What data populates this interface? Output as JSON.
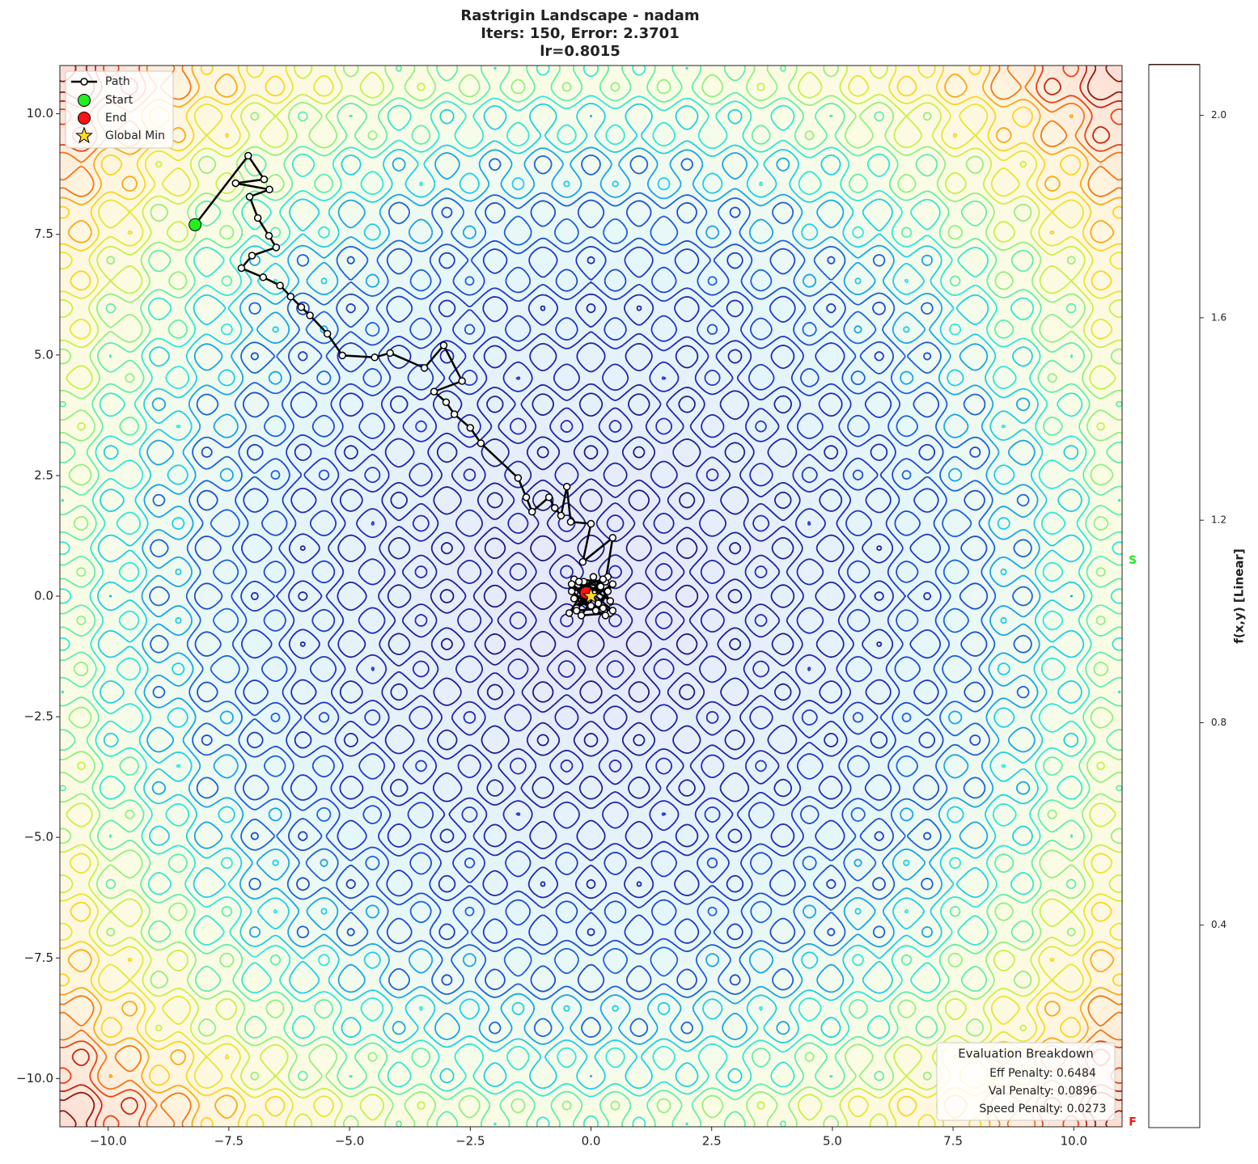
{
  "chart_data": {
    "type": "contour",
    "title": "Rastrigin Landscape - nadam",
    "subtitle": "Iters: 150, Error: 2.3701",
    "subtitle2": "lr=0.8015",
    "xlim": [
      -11,
      11
    ],
    "ylim": [
      -11,
      11
    ],
    "xticks": [
      {
        "value": -10,
        "label": "−10.0"
      },
      {
        "value": -7.5,
        "label": "−7.5"
      },
      {
        "value": -5,
        "label": "−5.0"
      },
      {
        "value": -2.5,
        "label": "−2.5"
      },
      {
        "value": 0,
        "label": "0.0"
      },
      {
        "value": 2.5,
        "label": "2.5"
      },
      {
        "value": 5,
        "label": "5.0"
      },
      {
        "value": 7.5,
        "label": "7.5"
      },
      {
        "value": 10,
        "label": "10.0"
      }
    ],
    "yticks": [
      {
        "value": -10,
        "label": "−10.0"
      },
      {
        "value": -7.5,
        "label": "−7.5"
      },
      {
        "value": -5,
        "label": "−5.0"
      },
      {
        "value": -2.5,
        "label": "−2.5"
      },
      {
        "value": 0,
        "label": "0.0"
      },
      {
        "value": 2.5,
        "label": "2.5"
      },
      {
        "value": 5,
        "label": "5.0"
      },
      {
        "value": 7.5,
        "label": "7.5"
      },
      {
        "value": 10,
        "label": "10.0"
      }
    ],
    "path": {
      "name": "Path",
      "color": "#000000",
      "x": [
        -8.2,
        -7.1,
        -6.77,
        -7.36,
        -6.66,
        -7.07,
        -6.9,
        -6.67,
        -6.52,
        -7.02,
        -7.24,
        -6.79,
        -6.44,
        -6.22,
        -6.0,
        -5.82,
        -5.46,
        -5.15,
        -4.48,
        -4.16,
        -3.45,
        -3.05,
        -2.67,
        -3.25,
        -3.0,
        -2.83,
        -2.5,
        -2.28,
        -1.51,
        -1.34,
        -1.22,
        -0.87,
        -0.75,
        -0.62,
        -0.5,
        -0.42,
        0.0,
        -0.17,
        0.45,
        0.3,
        -0.35,
        0.4,
        -0.2,
        0.35,
        -0.4,
        0.1,
        0.45,
        -0.3,
        0.25,
        -0.45,
        0.05,
        0.4,
        -0.15,
        0.3,
        -0.35,
        0.2,
        -0.25,
        0.45,
        0.0,
        -0.4,
        0.15,
        0.35,
        -0.1,
        -0.3,
        0.25,
        -0.1
      ],
      "y": [
        7.7,
        9.13,
        8.64,
        8.56,
        8.43,
        8.28,
        7.84,
        7.47,
        7.23,
        7.06,
        6.8,
        6.61,
        6.44,
        6.21,
        5.99,
        5.82,
        5.44,
        4.99,
        4.95,
        5.04,
        4.73,
        5.2,
        4.46,
        4.24,
        4.02,
        3.77,
        3.49,
        3.17,
        2.45,
        2.05,
        1.75,
        2.05,
        1.83,
        1.67,
        2.27,
        1.54,
        1.5,
        0.71,
        1.21,
        0.3,
        0.35,
        -0.35,
        -0.4,
        0.4,
        0.1,
        -0.3,
        0.25,
        -0.25,
        0.35,
        -0.35,
        0.4,
        -0.1,
        0.3,
        -0.4,
        -0.05,
        0.2,
        0.3,
        -0.3,
        -0.2,
        0.25,
        -0.15,
        0.1,
        0.15,
        -0.3,
        -0.25,
        0.07
      ]
    },
    "start": {
      "name": "Start",
      "color": "#22ee22",
      "x": -8.2,
      "y": 7.7
    },
    "end": {
      "name": "End",
      "color": "#ff1111",
      "x": -0.1,
      "y": 0.07
    },
    "global_min": {
      "name": "Global Min",
      "color": "#ffdd22",
      "x": 0,
      "y": 0
    },
    "colorbar": {
      "label": "f(x,y) [Linear]",
      "lim": [
        0,
        2.1
      ],
      "ticks": [
        0.4,
        0.8,
        1.2,
        {
          "value": 1.6,
          "label": "1.6"
        },
        {
          "value": 2,
          "label": "2.0"
        }
      ],
      "levels": [
        0.1,
        0.2,
        0.3,
        0.4,
        0.5,
        0.6,
        0.7,
        0.8,
        0.9,
        1.0,
        1.1,
        1.2,
        1.3,
        1.4,
        1.5,
        1.6,
        1.7,
        1.8,
        1.9,
        2.0,
        2.1
      ],
      "start_level": {
        "label": "S",
        "value": 1.12,
        "color": "#22ee22"
      },
      "end_level": {
        "label": "F",
        "value": 0.01,
        "color": "#ff1111"
      }
    },
    "evaluation": {
      "title": "Evaluation Breakdown",
      "lines": [
        "Eff Penalty: 0.6484",
        "Val Penalty: 0.0896",
        "Speed Penalty: 0.0273"
      ]
    }
  }
}
